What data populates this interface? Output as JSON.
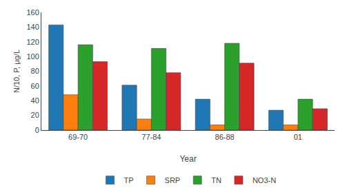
{
  "chart_data": {
    "type": "bar",
    "categories": [
      "69-70",
      "77-84",
      "86-88",
      "01"
    ],
    "series": [
      {
        "name": "TP",
        "values": [
          143,
          61,
          42,
          27
        ]
      },
      {
        "name": "SRP",
        "values": [
          48,
          15,
          7,
          7
        ]
      },
      {
        "name": "TN",
        "values": [
          116,
          111,
          118,
          42
        ]
      },
      {
        "name": "NO3-N",
        "values": [
          93,
          78,
          91,
          29
        ]
      }
    ],
    "xlabel": "Year",
    "ylabel": "N/10, P, μg/L",
    "ylim": [
      0,
      160
    ],
    "yticks": [
      0,
      20,
      40,
      60,
      80,
      100,
      120,
      140,
      160
    ],
    "grid": false,
    "legend": "bottom"
  }
}
